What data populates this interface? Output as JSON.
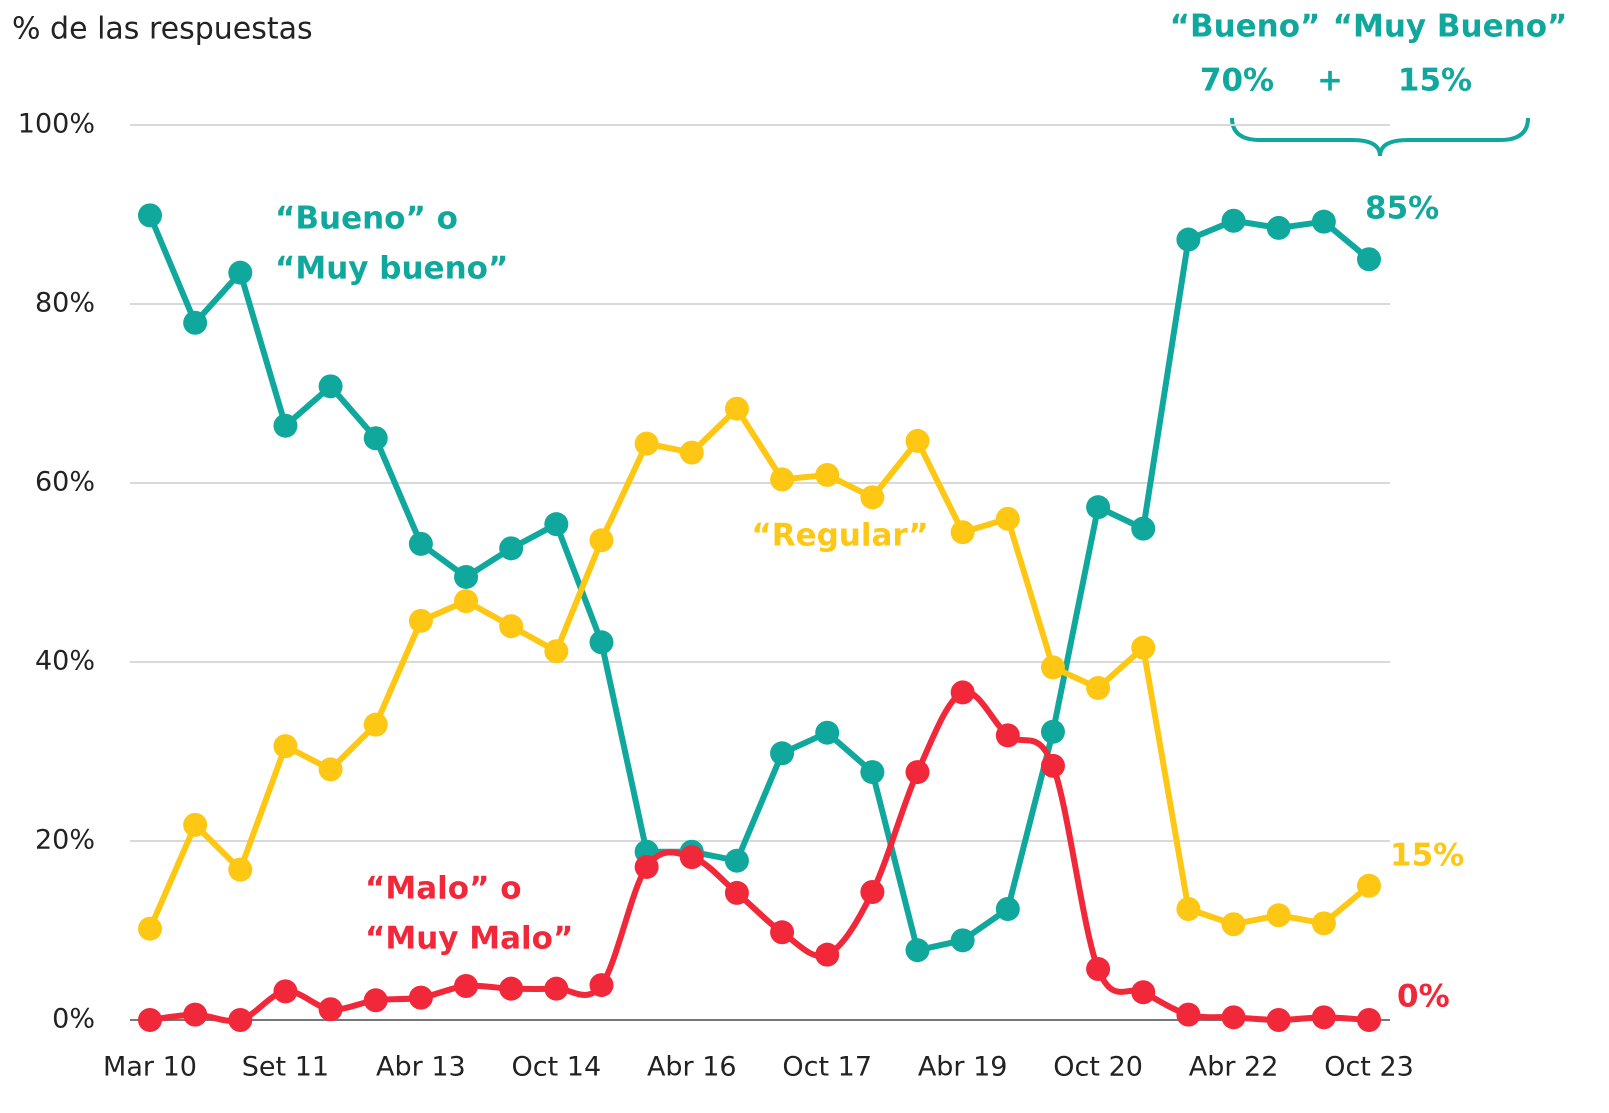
{
  "chart_data": {
    "type": "line",
    "y_axis_title": "% de las respuestas",
    "categories": [
      "Mar 10",
      null,
      null,
      "Set 11",
      null,
      null,
      "Abr 13",
      null,
      null,
      "Oct 14",
      null,
      null,
      "Abr 16",
      null,
      null,
      "Oct 17",
      null,
      null,
      "Abr 19",
      null,
      null,
      "Oct 20",
      null,
      null,
      "Abr 22",
      null,
      null,
      "Oct 23"
    ],
    "ylim": [
      0,
      100
    ],
    "yticks": [
      {
        "value": 0,
        "label": "0%"
      },
      {
        "value": 20,
        "label": "20%"
      },
      {
        "value": 40,
        "label": "40%"
      },
      {
        "value": 60,
        "label": "60%"
      },
      {
        "value": 80,
        "label": "80%"
      },
      {
        "value": 100,
        "label": "100%"
      }
    ],
    "grid": true,
    "series": [
      {
        "label": [
          "“Bueno” o",
          "“Muy bueno”"
        ],
        "color": "#10a89d",
        "smooth": false,
        "values": [
          89.9,
          77.9,
          83.5,
          66.4,
          70.8,
          65.0,
          53.2,
          49.5,
          52.7,
          55.4,
          42.2,
          18.8,
          18.8,
          17.8,
          29.8,
          32.1,
          27.7,
          7.8,
          8.9,
          12.4,
          32.2,
          57.3,
          54.9,
          87.2,
          89.3,
          88.5,
          89.2,
          85
        ],
        "value_labels": [
          null,
          null,
          null,
          null,
          null,
          null,
          null,
          null,
          null,
          null,
          null,
          null,
          null,
          null,
          null,
          null,
          null,
          null,
          null,
          null,
          null,
          null,
          null,
          null,
          null,
          null,
          null,
          "85%"
        ]
      },
      {
        "label": [
          "“Regular”"
        ],
        "color": "#fdc714",
        "smooth": false,
        "values": [
          10.2,
          21.8,
          16.8,
          30.6,
          28.0,
          33.0,
          44.6,
          46.8,
          44.0,
          41.2,
          53.6,
          64.4,
          63.4,
          68.3,
          60.4,
          60.9,
          58.4,
          64.7,
          54.5,
          56.0,
          39.4,
          37.1,
          41.6,
          12.4,
          10.7,
          11.7,
          10.8,
          15
        ],
        "value_labels": [
          null,
          null,
          null,
          null,
          null,
          null,
          null,
          null,
          null,
          null,
          null,
          null,
          null,
          null,
          null,
          null,
          null,
          null,
          null,
          null,
          null,
          null,
          null,
          null,
          null,
          null,
          null,
          "15%"
        ]
      },
      {
        "label": [
          "“Malo” o",
          "“Muy Malo”"
        ],
        "color": "#f0283a",
        "smooth": true,
        "values": [
          0,
          0.6,
          0,
          3.2,
          1.2,
          2.2,
          2.5,
          3.8,
          3.5,
          3.5,
          3.9,
          17.1,
          18.2,
          14.2,
          9.8,
          7.3,
          14.3,
          27.7,
          36.6,
          31.8,
          28.4,
          5.7,
          3.1,
          0.6,
          0.3,
          0,
          0.3,
          0
        ],
        "value_labels": [
          null,
          null,
          null,
          null,
          null,
          null,
          null,
          null,
          null,
          null,
          null,
          null,
          null,
          null,
          null,
          null,
          null,
          null,
          null,
          null,
          null,
          null,
          null,
          null,
          null,
          null,
          null,
          "0%"
        ]
      }
    ],
    "annotations": {
      "headers": [
        "“Bueno”",
        "“Muy Bueno”"
      ],
      "parts": [
        "70%",
        "+",
        "15%"
      ]
    }
  }
}
